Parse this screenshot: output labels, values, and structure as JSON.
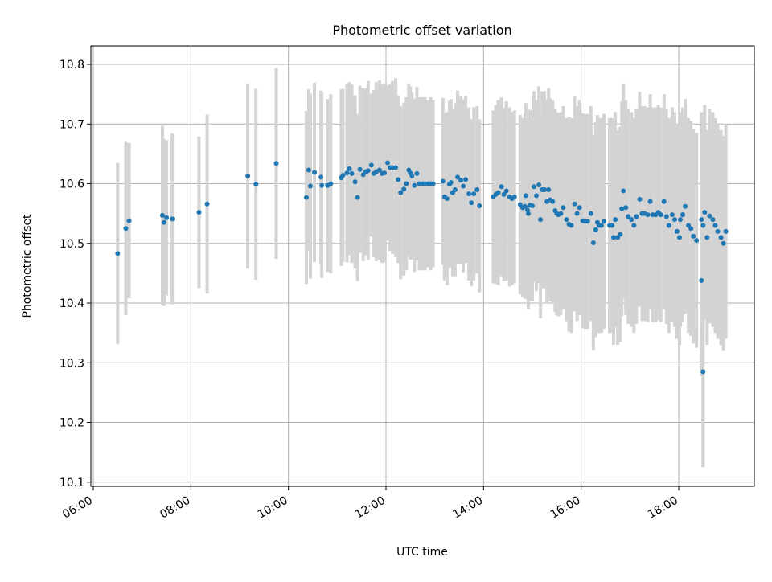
{
  "chart_data": {
    "type": "scatter",
    "title": "Photometric offset variation",
    "xlabel": "UTC time",
    "ylabel": "Photometric offset",
    "x_ticks": [
      "06:00",
      "08:00",
      "10:00",
      "12:00",
      "14:00",
      "16:00",
      "18:00"
    ],
    "y_ticks": [
      "10.1",
      "10.2",
      "10.3",
      "10.4",
      "10.5",
      "10.6",
      "10.7",
      "10.8"
    ],
    "xlim": [
      "05:57",
      "19:33"
    ],
    "ylim": [
      10.093,
      10.831
    ],
    "grid": true,
    "error_bars": true,
    "colors": {
      "points": "#1f77b4",
      "error_bars": "#d3d3d3",
      "grid": "#b0b0b0"
    },
    "series": [
      {
        "x": [
          "06:30",
          "06:40",
          "06:44",
          "07:25",
          "07:27",
          "07:30",
          "07:37",
          "08:10",
          "08:20",
          "09:10",
          "09:20",
          "09:45",
          "10:22",
          "10:25",
          "10:27",
          "10:32",
          "10:40",
          "10:41",
          "10:48",
          "10:52",
          "11:05",
          "11:07",
          "11:12",
          "11:15",
          "11:18",
          "11:22",
          "11:25",
          "11:28",
          "11:32",
          "11:35",
          "11:38",
          "11:42",
          "11:45",
          "11:48",
          "11:52",
          "11:55",
          "11:58",
          "12:02",
          "12:05",
          "12:08",
          "12:12",
          "12:15",
          "12:18",
          "12:22",
          "12:25",
          "12:28",
          "12:30",
          "12:32",
          "12:35",
          "12:38",
          "12:41",
          "12:45",
          "12:48",
          "12:52",
          "12:55",
          "12:58",
          "13:10",
          "13:12",
          "13:15",
          "13:18",
          "13:20",
          "13:22",
          "13:25",
          "13:28",
          "13:32",
          "13:35",
          "13:38",
          "13:42",
          "13:45",
          "13:48",
          "13:52",
          "13:55",
          "14:12",
          "14:15",
          "14:18",
          "14:22",
          "14:25",
          "14:28",
          "14:32",
          "14:35",
          "14:38",
          "14:45",
          "14:48",
          "14:51",
          "14:52",
          "14:54",
          "14:55",
          "14:57",
          "15:00",
          "15:02",
          "15:05",
          "15:08",
          "15:10",
          "15:12",
          "15:15",
          "15:18",
          "15:20",
          "15:22",
          "15:25",
          "15:28",
          "15:30",
          "15:32",
          "15:35",
          "15:38",
          "15:42",
          "15:45",
          "15:48",
          "15:52",
          "15:55",
          "15:58",
          "16:02",
          "16:05",
          "16:08",
          "16:12",
          "16:15",
          "16:18",
          "16:20",
          "16:22",
          "16:25",
          "16:28",
          "16:35",
          "16:38",
          "16:40",
          "16:42",
          "16:45",
          "16:48",
          "16:50",
          "16:52",
          "16:55",
          "16:58",
          "17:02",
          "17:05",
          "17:08",
          "17:12",
          "17:15",
          "17:18",
          "17:22",
          "17:25",
          "17:28",
          "17:32",
          "17:35",
          "17:38",
          "17:42",
          "17:45",
          "17:48",
          "17:52",
          "17:55",
          "17:58",
          "18:02",
          "18:05",
          "18:08",
          "18:12",
          "18:15",
          "18:18",
          "18:22",
          "18:28",
          "18:30",
          "18:32",
          "18:35",
          "18:38",
          "18:42",
          "18:45",
          "18:48",
          "18:52",
          "18:55",
          "18:58",
          "18:01",
          "18:05",
          "18:28",
          "18:30"
        ],
        "y": [
          10.483,
          10.525,
          10.538,
          10.547,
          10.535,
          10.543,
          10.541,
          10.552,
          10.566,
          10.613,
          10.599,
          10.634,
          10.577,
          10.623,
          10.596,
          10.619,
          10.611,
          10.597,
          10.597,
          10.6,
          10.61,
          10.614,
          10.618,
          10.625,
          10.617,
          10.603,
          10.577,
          10.624,
          10.615,
          10.62,
          10.622,
          10.631,
          10.617,
          10.62,
          10.623,
          10.617,
          10.618,
          10.635,
          10.627,
          10.627,
          10.627,
          10.607,
          10.585,
          10.591,
          10.6,
          10.623,
          10.618,
          10.613,
          10.597,
          10.617,
          10.6,
          10.6,
          10.6,
          10.6,
          10.6,
          10.6,
          10.604,
          10.578,
          10.575,
          10.599,
          10.602,
          10.585,
          10.59,
          10.611,
          10.606,
          10.596,
          10.607,
          10.583,
          10.568,
          10.583,
          10.59,
          10.563,
          10.578,
          10.582,
          10.585,
          10.595,
          10.582,
          10.588,
          10.578,
          10.575,
          10.578,
          10.565,
          10.56,
          10.562,
          10.58,
          10.556,
          10.55,
          10.564,
          10.563,
          10.595,
          10.58,
          10.598,
          10.54,
          10.59,
          10.59,
          10.57,
          10.59,
          10.573,
          10.57,
          10.555,
          10.55,
          10.548,
          10.55,
          10.56,
          10.54,
          10.532,
          10.53,
          10.566,
          10.55,
          10.56,
          10.538,
          10.537,
          10.537,
          10.55,
          10.501,
          10.523,
          10.535,
          10.53,
          10.53,
          10.537,
          10.53,
          10.53,
          10.51,
          10.54,
          10.51,
          10.515,
          10.558,
          10.588,
          10.56,
          10.545,
          10.54,
          10.53,
          10.545,
          10.574,
          10.55,
          10.55,
          10.548,
          10.57,
          10.548,
          10.548,
          10.552,
          10.548,
          10.57,
          10.545,
          10.53,
          10.548,
          10.54,
          10.52,
          10.54,
          10.548,
          10.562,
          10.53,
          10.525,
          10.512,
          10.505,
          10.54,
          10.53,
          10.552,
          10.51,
          10.546,
          10.54,
          10.53,
          10.52,
          10.51,
          10.5,
          10.52,
          10.51,
          10.548,
          10.438,
          10.285
        ],
        "err": [
          0.152,
          0.145,
          0.13,
          0.15,
          0.14,
          0.13,
          0.143,
          0.127,
          0.15,
          0.155,
          0.16,
          0.16,
          0.145,
          0.135,
          0.155,
          0.15,
          0.145,
          0.155,
          0.145,
          0.15,
          0.148,
          0.145,
          0.15,
          0.145,
          0.15,
          0.145,
          0.14,
          0.14,
          0.145,
          0.14,
          0.15,
          0.12,
          0.14,
          0.15,
          0.15,
          0.15,
          0.15,
          0.13,
          0.14,
          0.145,
          0.15,
          0.14,
          0.145,
          0.145,
          0.145,
          0.145,
          0.145,
          0.14,
          0.145,
          0.145,
          0.145,
          0.145,
          0.145,
          0.14,
          0.145,
          0.14,
          0.14,
          0.14,
          0.145,
          0.14,
          0.14,
          0.14,
          0.145,
          0.145,
          0.14,
          0.145,
          0.14,
          0.145,
          0.14,
          0.145,
          0.14,
          0.145,
          0.145,
          0.15,
          0.155,
          0.15,
          0.145,
          0.15,
          0.15,
          0.145,
          0.145,
          0.15,
          0.15,
          0.155,
          0.155,
          0.15,
          0.16,
          0.16,
          0.16,
          0.16,
          0.16,
          0.165,
          0.165,
          0.165,
          0.165,
          0.17,
          0.17,
          0.17,
          0.17,
          0.17,
          0.17,
          0.17,
          0.17,
          0.17,
          0.17,
          0.18,
          0.18,
          0.18,
          0.18,
          0.18,
          0.18,
          0.18,
          0.18,
          0.18,
          0.18,
          0.18,
          0.18,
          0.18,
          0.18,
          0.18,
          0.18,
          0.18,
          0.18,
          0.18,
          0.18,
          0.18,
          0.18,
          0.18,
          0.18,
          0.18,
          0.18,
          0.18,
          0.18,
          0.18,
          0.18,
          0.18,
          0.18,
          0.18,
          0.18,
          0.18,
          0.18,
          0.18,
          0.18,
          0.18,
          0.18,
          0.18,
          0.18,
          0.18,
          0.18,
          0.18,
          0.18,
          0.18,
          0.18,
          0.18,
          0.18,
          0.18,
          0.18,
          0.18,
          0.18,
          0.18,
          0.18,
          0.18,
          0.18,
          0.18,
          0.18,
          0.18,
          0.18,
          0.18,
          0.16,
          0.16
        ]
      }
    ]
  }
}
